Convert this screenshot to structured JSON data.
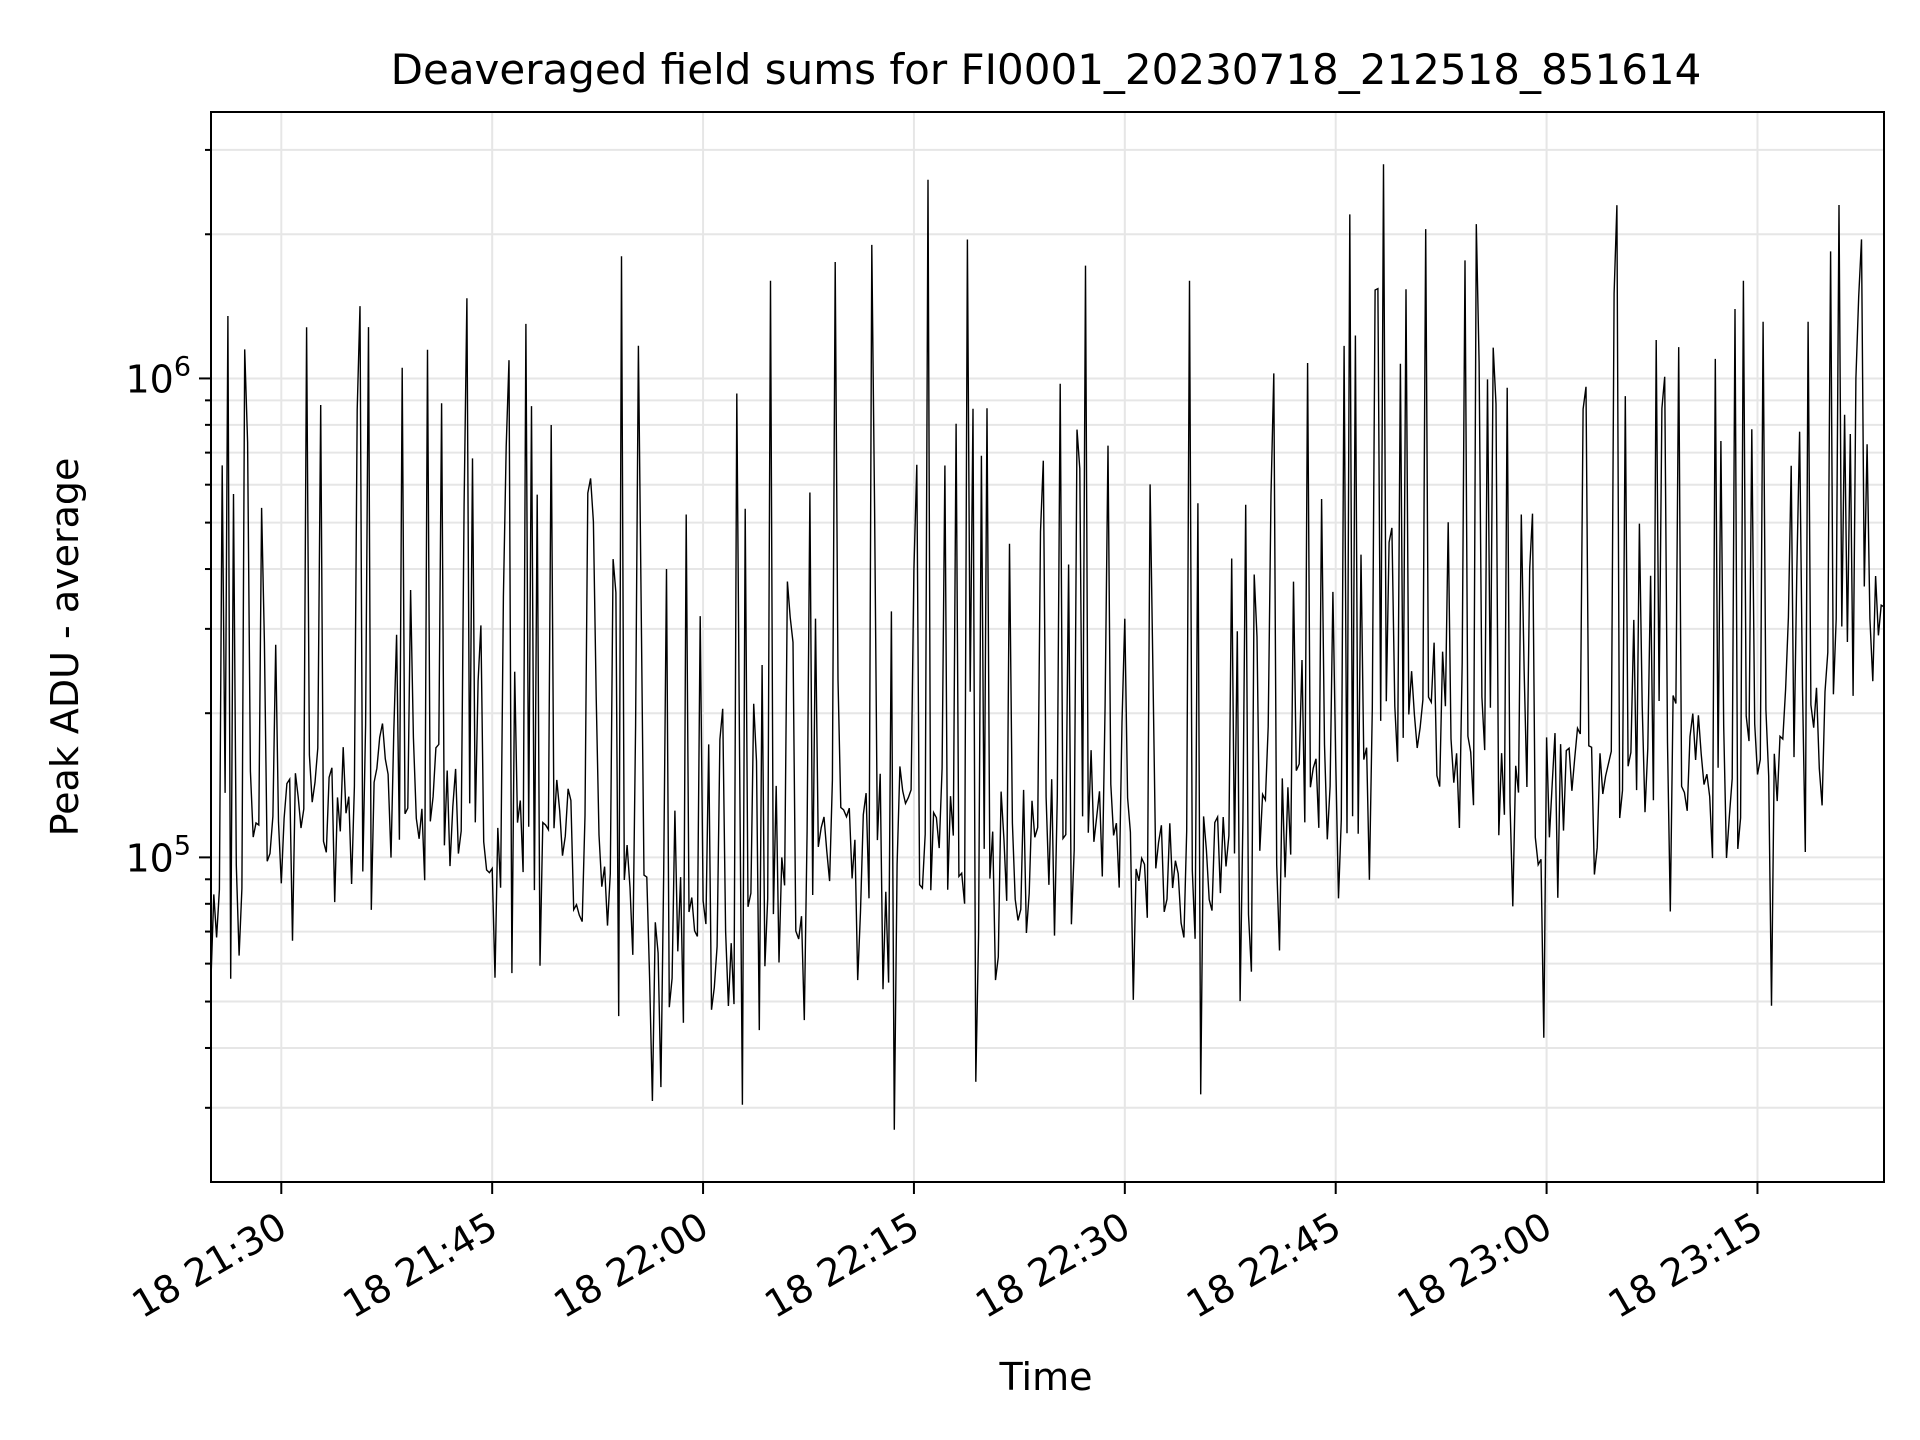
{
  "chart_data": {
    "type": "line",
    "title": "Deaveraged field sums for FI0001_20230718_212518_851614",
    "xlabel": "Time",
    "ylabel": "Peak ADU - average",
    "yscale": "log",
    "grid": true,
    "line_color": "#000000",
    "x_start": "18 21:25:00",
    "x_end": "18 23:24:00",
    "xlim": [
      "18 21:25:00",
      "18 23:24:00"
    ],
    "ylim": [
      21000,
      3600000
    ],
    "xticks": [
      "18 21:30",
      "18 21:45",
      "18 22:00",
      "18 22:15",
      "18 22:30",
      "18 22:45",
      "18 23:00",
      "18 23:15"
    ],
    "ytick_labels": [
      {
        "value": 100000,
        "base": "10",
        "exp": "5"
      },
      {
        "value": 1000000,
        "base": "10",
        "exp": "6"
      }
    ],
    "series": [
      {
        "x": [
          "18 21:25:00",
          "18 21:31:15",
          "18 21:37:30",
          "18 21:43:45",
          "18 21:50:00",
          "18 21:56:15",
          "18 22:02:30",
          "18 22:08:45",
          "18 22:15:00",
          "18 22:21:15",
          "18 22:27:30",
          "18 22:33:45",
          "18 22:40:00",
          "18 22:46:15",
          "18 22:52:30",
          "18 22:58:45",
          "18 23:05:00",
          "18 23:11:15",
          "18 23:17:30",
          "18 23:24:00"
        ],
        "values": [
          62000,
          150000,
          150000,
          120000,
          110000,
          75000,
          60000,
          110000,
          120000,
          110000,
          130000,
          90000,
          110000,
          150000,
          220000,
          130000,
          160000,
          170000,
          180000,
          350000
        ],
        "peaks": [
          {
            "x": "18 21:26:10",
            "value": 1350000
          },
          {
            "x": "18 21:27:30",
            "value": 1150000
          },
          {
            "x": "18 21:32:45",
            "value": 880000
          },
          {
            "x": "18 21:36:10",
            "value": 1280000
          },
          {
            "x": "18 21:43:15",
            "value": 1470000
          },
          {
            "x": "18 21:47:20",
            "value": 1300000
          },
          {
            "x": "18 21:54:10",
            "value": 1800000
          },
          {
            "x": "18 21:55:20",
            "value": 1170000
          },
          {
            "x": "18 21:58:50",
            "value": 520000
          },
          {
            "x": "18 22:02:30",
            "value": 930000
          },
          {
            "x": "18 22:04:50",
            "value": 1600000
          },
          {
            "x": "18 22:09:30",
            "value": 1750000
          },
          {
            "x": "18 22:12:00",
            "value": 1900000
          },
          {
            "x": "18 22:16:00",
            "value": 2600000
          },
          {
            "x": "18 22:18:50",
            "value": 1950000
          },
          {
            "x": "18 22:27:10",
            "value": 1720000
          },
          {
            "x": "18 22:34:40",
            "value": 1600000
          },
          {
            "x": "18 22:46:00",
            "value": 2200000
          },
          {
            "x": "18 22:48:30",
            "value": 2800000
          },
          {
            "x": "18 22:51:30",
            "value": 2050000
          },
          {
            "x": "18 22:55:00",
            "value": 2100000
          },
          {
            "x": "18 23:05:00",
            "value": 2300000
          },
          {
            "x": "18 23:14:00",
            "value": 1600000
          },
          {
            "x": "18 23:22:00",
            "value": 1000000
          }
        ],
        "troughs": [
          {
            "x": "18 21:56:30",
            "value": 31000
          },
          {
            "x": "18 22:13:40",
            "value": 27000
          },
          {
            "x": "18 22:19:30",
            "value": 34000
          },
          {
            "x": "18 22:35:20",
            "value": 32000
          },
          {
            "x": "18 22:59:50",
            "value": 42000
          },
          {
            "x": "18 23:16:00",
            "value": 49000
          }
        ]
      }
    ]
  }
}
